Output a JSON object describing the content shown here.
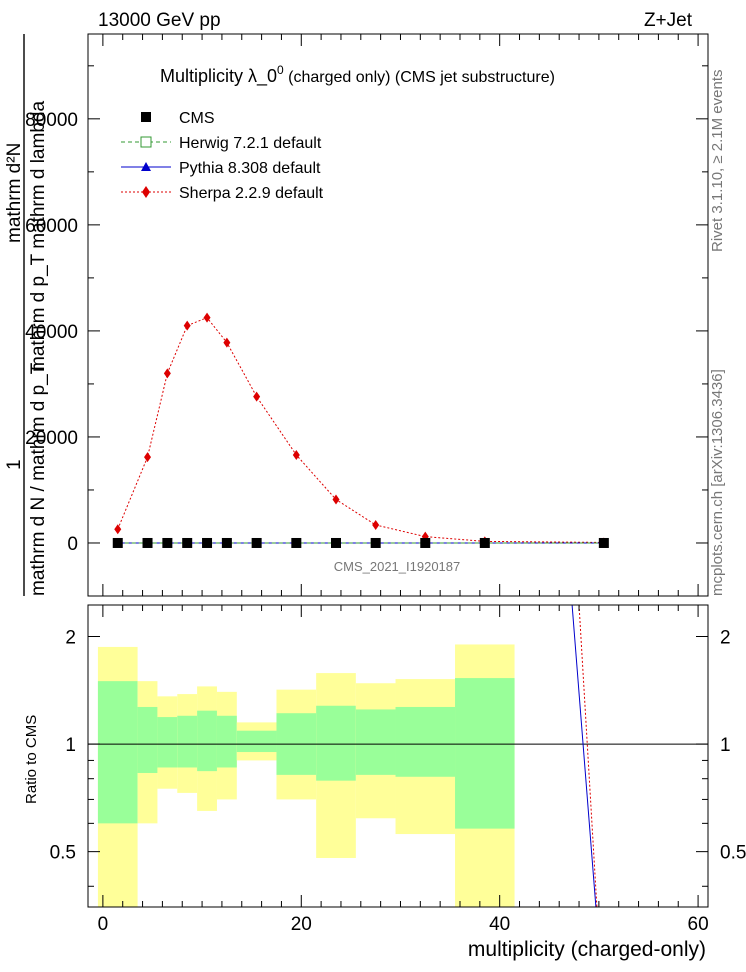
{
  "header": {
    "left": "13000 GeV pp",
    "right": "Z+Jet"
  },
  "side_text": {
    "rivet": "Rivet 3.1.10, ≥ 2.1M events",
    "mcplots": "mcplots.cern.ch [arXiv:1306.3436]"
  },
  "main": {
    "title": "Multiplicity  λ_0",
    "title_sup": "0",
    "title_suffix": " (charged only) (CMS jet substructure)",
    "watermark": "CMS_2021_I1920187",
    "ylabel_top": "mathrm d²N",
    "ylabel_mid": "mathrm d p_T mathrm d lambda",
    "ylabel_one": "1",
    "ylabel_bottom": "mathrm d N / mathrm d p_T",
    "ytick_labels": [
      "0",
      "20000",
      "40000",
      "60000",
      "80000"
    ]
  },
  "ratio": {
    "ylabel": "Ratio to CMS",
    "ytick_labels": [
      "0.5",
      "1",
      "2"
    ],
    "xlabel": "multiplicity (charged-only)",
    "xtick_labels": [
      "0",
      "20",
      "40",
      "60"
    ]
  },
  "legend": {
    "entries": [
      {
        "label": "CMS",
        "color": "#000000",
        "marker": "square-filled"
      },
      {
        "label": "Herwig 7.2.1 default",
        "color": "#339933",
        "marker": "square-open"
      },
      {
        "label": "Pythia 8.308 default",
        "color": "#0000cc",
        "marker": "triangle"
      },
      {
        "label": "Sherpa 2.2.9 default",
        "color": "#dd0000",
        "marker": "diamond"
      }
    ]
  },
  "chart_data": {
    "type": "line",
    "title": "Multiplicity  λ_0^0 (charged only) (CMS jet substructure)",
    "xlabel": "multiplicity (charged-only)",
    "ylabel": "1 / mathrm d N / mathrm d p_T  mathrm d²N / mathrm d p_T mathrm d lambda",
    "xlim": [
      -1.5,
      61
    ],
    "ylim": [
      -10000,
      96000
    ],
    "x": [
      1.5,
      4.5,
      6.5,
      8.5,
      10.5,
      12.5,
      15.5,
      19.5,
      23.5,
      27.5,
      32.5,
      38.5,
      50.5
    ],
    "series": [
      {
        "name": "CMS",
        "color": "#000000",
        "values": [
          0,
          0,
          0,
          0,
          0,
          0,
          0,
          0,
          0,
          0,
          0,
          0,
          0
        ]
      },
      {
        "name": "Herwig 7.2.1 default",
        "color": "#339933",
        "values": [
          0,
          0,
          0,
          0,
          0,
          0,
          0,
          0,
          0,
          0,
          0,
          0,
          0
        ]
      },
      {
        "name": "Pythia 8.308 default",
        "color": "#0000cc",
        "values": [
          0,
          0,
          0,
          0,
          0,
          0,
          0,
          0,
          0,
          0,
          0,
          0,
          0
        ]
      },
      {
        "name": "Sherpa 2.2.9 default",
        "color": "#dd0000",
        "values": [
          2600,
          16200,
          32000,
          41000,
          42500,
          37800,
          27600,
          16600,
          8200,
          3400,
          1200,
          300,
          100
        ]
      }
    ],
    "ratio_panel": {
      "ylabel": "Ratio to CMS",
      "ylim": [
        0.35,
        2.45
      ],
      "log_scale": true,
      "reference_line": 1,
      "bands": [
        {
          "x0": -0.5,
          "x1": 3.5,
          "green": [
            0.6,
            1.5
          ],
          "yellow": [
            0.35,
            1.87
          ]
        },
        {
          "x0": 3.5,
          "x1": 5.5,
          "green": [
            0.83,
            1.27
          ],
          "yellow": [
            0.6,
            1.5
          ]
        },
        {
          "x0": 5.5,
          "x1": 7.5,
          "green": [
            0.86,
            1.19
          ],
          "yellow": [
            0.75,
            1.36
          ]
        },
        {
          "x0": 7.5,
          "x1": 9.5,
          "green": [
            0.86,
            1.2
          ],
          "yellow": [
            0.73,
            1.38
          ]
        },
        {
          "x0": 9.5,
          "x1": 11.5,
          "green": [
            0.84,
            1.24
          ],
          "yellow": [
            0.65,
            1.45
          ]
        },
        {
          "x0": 11.5,
          "x1": 13.5,
          "green": [
            0.86,
            1.2
          ],
          "yellow": [
            0.7,
            1.4
          ]
        },
        {
          "x0": 13.5,
          "x1": 17.5,
          "green": [
            0.95,
            1.09
          ],
          "yellow": [
            0.9,
            1.15
          ]
        },
        {
          "x0": 17.5,
          "x1": 21.5,
          "green": [
            0.82,
            1.22
          ],
          "yellow": [
            0.7,
            1.42
          ]
        },
        {
          "x0": 21.5,
          "x1": 25.5,
          "green": [
            0.79,
            1.28
          ],
          "yellow": [
            0.48,
            1.58
          ]
        },
        {
          "x0": 25.5,
          "x1": 29.5,
          "green": [
            0.82,
            1.25
          ],
          "yellow": [
            0.62,
            1.48
          ]
        },
        {
          "x0": 29.5,
          "x1": 35.5,
          "green": [
            0.81,
            1.27
          ],
          "yellow": [
            0.56,
            1.52
          ]
        },
        {
          "x0": 35.5,
          "x1": 41.5,
          "green": [
            0.58,
            1.53
          ],
          "yellow": [
            0.35,
            1.9
          ]
        }
      ],
      "pythia_line": [
        [
          47.3,
          2.45
        ],
        [
          49.7,
          0.35
        ]
      ],
      "sherpa_line": [
        [
          48.0,
          2.45
        ],
        [
          49.8,
          0.35
        ]
      ]
    }
  }
}
